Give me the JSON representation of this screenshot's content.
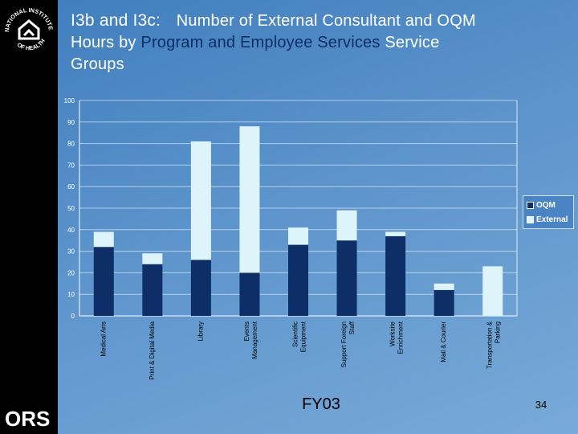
{
  "slide": {
    "title_prefix": "I3b and I3c:",
    "title_line1_rest": "Number of External Consultant and OQM",
    "title_line2_a": "Hours by",
    "title_line2_b": "Program and Employee Services",
    "title_line2_c": "Service",
    "title_line3": "Groups",
    "fy_label": "FY03",
    "page_number": "34"
  },
  "logos": {
    "nih_text_top": "NATIONAL INSTITUTES",
    "nih_text_bottom": "OF HEALTH",
    "ors_text": "ORS"
  },
  "colors": {
    "oqm": "#0d2e66",
    "external": "#ddf4fb",
    "sidebar": "#000000",
    "title": "#ffffff"
  },
  "chart_data": {
    "type": "bar",
    "stacked": true,
    "title": "",
    "xlabel": "FY03",
    "ylabel": "",
    "ylim": [
      0,
      100
    ],
    "yticks": [
      "0",
      "10",
      "20",
      "30",
      "40",
      "50",
      "60",
      "70",
      "80",
      "90",
      "100"
    ],
    "legend_position": "right",
    "categories": [
      [
        "Medical Arts"
      ],
      [
        "Print & Digital Media"
      ],
      [
        "Library"
      ],
      [
        "Events",
        "Management"
      ],
      [
        "Scientific",
        "Equipment"
      ],
      [
        "Support Foreign",
        "Staff"
      ],
      [
        "Worksite",
        "Enrichment"
      ],
      [
        "Mail & Courier"
      ],
      [
        "Transportation &",
        "Parking"
      ]
    ],
    "series": [
      {
        "name": "OQM",
        "color": "#0d2e66",
        "values": [
          32,
          24,
          26,
          20,
          33,
          35,
          37,
          12,
          0
        ]
      },
      {
        "name": "External",
        "color": "#ddf4fb",
        "values": [
          7,
          5,
          55,
          68,
          8,
          14,
          2,
          3,
          23
        ]
      }
    ]
  }
}
